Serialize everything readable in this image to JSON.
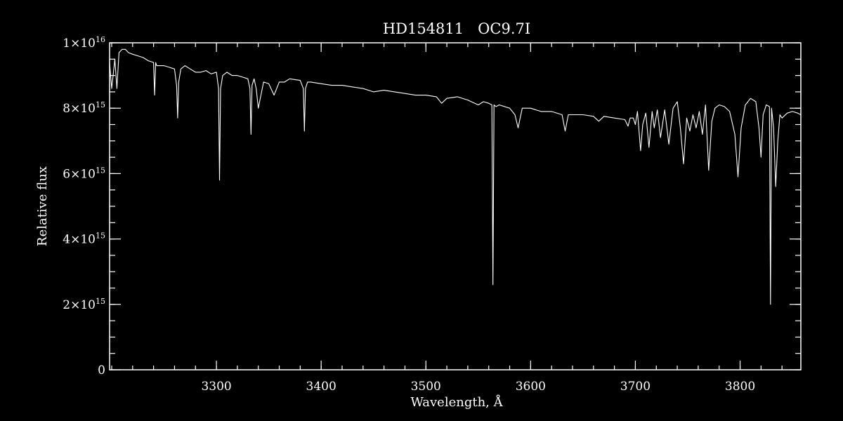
{
  "chart_data": {
    "type": "line",
    "title": "HD154811   OC9.7I",
    "xlabel": "Wavelength, Å",
    "ylabel": "Relative flux",
    "xlim": [
      3198,
      3858
    ],
    "ylim": [
      0,
      1e+16
    ],
    "x_ticks": [
      {
        "value": 3300,
        "label": "3300"
      },
      {
        "value": 3400,
        "label": "3400"
      },
      {
        "value": 3500,
        "label": "3500"
      },
      {
        "value": 3600,
        "label": "3600"
      },
      {
        "value": 3700,
        "label": "3700"
      },
      {
        "value": 3800,
        "label": "3800"
      }
    ],
    "x_minor_step": 20,
    "y_ticks": [
      {
        "value": 0,
        "mantissa": "0",
        "exponent": ""
      },
      {
        "value": 2000000000000000.0,
        "mantissa": "2×10",
        "exponent": "15"
      },
      {
        "value": 4000000000000000.0,
        "mantissa": "4×10",
        "exponent": "15"
      },
      {
        "value": 6000000000000000.0,
        "mantissa": "6×10",
        "exponent": "15"
      },
      {
        "value": 8000000000000000.0,
        "mantissa": "8×10",
        "exponent": "15"
      },
      {
        "value": 1e+16,
        "mantissa": "1×10",
        "exponent": "16"
      }
    ],
    "y_minor_step": 500000000000000.0,
    "grid": false,
    "colors": {
      "background": "#000000",
      "foreground": "#ffffff"
    },
    "series": [
      {
        "x": [
          3198,
          3200,
          3203,
          3205,
          3207,
          3210,
          3213,
          3216,
          3220,
          3225,
          3230,
          3235,
          3240,
          3241,
          3242,
          3243,
          3245,
          3250,
          3255,
          3260,
          3262,
          3263,
          3264,
          3266,
          3270,
          3275,
          3280,
          3285,
          3290,
          3295,
          3300,
          3302,
          3303,
          3304,
          3306,
          3310,
          3315,
          3320,
          3325,
          3330,
          3332,
          3333,
          3334,
          3336,
          3338,
          3340,
          3345,
          3350,
          3355,
          3360,
          3365,
          3370,
          3380,
          3383,
          3384,
          3385,
          3387,
          3390,
          3400,
          3410,
          3420,
          3430,
          3440,
          3450,
          3460,
          3470,
          3480,
          3490,
          3500,
          3510,
          3515,
          3520,
          3530,
          3540,
          3550,
          3555,
          3560,
          3563,
          3564,
          3565,
          3567,
          3570,
          3580,
          3585,
          3588,
          3592,
          3600,
          3610,
          3620,
          3630,
          3633,
          3636,
          3640,
          3650,
          3660,
          3665,
          3670,
          3680,
          3690,
          3693,
          3695,
          3698,
          3700,
          3702,
          3705,
          3707,
          3710,
          3713,
          3716,
          3718,
          3721,
          3724,
          3728,
          3732,
          3736,
          3740,
          3743,
          3746,
          3749,
          3752,
          3755,
          3758,
          3761,
          3764,
          3767,
          3770,
          3773,
          3776,
          3780,
          3785,
          3790,
          3795,
          3798,
          3801,
          3805,
          3810,
          3815,
          3818,
          3820,
          3822,
          3825,
          3828,
          3829,
          3830,
          3832,
          3834,
          3836,
          3838,
          3840,
          3845,
          3850,
          3855,
          3858
        ],
        "y": [
          9400000000000000.0,
          8600000000000000.0,
          9500000000000000.0,
          8600000000000000.0,
          9700000000000000.0,
          9800000000000000.0,
          9800000000000000.0,
          9700000000000000.0,
          9650000000000000.0,
          9600000000000000.0,
          9550000000000000.0,
          9450000000000000.0,
          9400000000000000.0,
          8400000000000000.0,
          9400000000000000.0,
          9300000000000000.0,
          9300000000000000.0,
          9300000000000000.0,
          9250000000000000.0,
          9200000000000000.0,
          8700000000000000.0,
          7700000000000000.0,
          8800000000000000.0,
          9200000000000000.0,
          9300000000000000.0,
          9200000000000000.0,
          9100000000000000.0,
          9100000000000000.0,
          9150000000000000.0,
          9050000000000000.0,
          9100000000000000.0,
          8600000000000000.0,
          5800000000000000.0,
          8600000000000000.0,
          9000000000000000.0,
          9100000000000000.0,
          9000000000000000.0,
          9000000000000000.0,
          8950000000000000.0,
          8900000000000000.0,
          8600000000000000.0,
          7200000000000000.0,
          8700000000000000.0,
          8900000000000000.0,
          8600000000000000.0,
          8000000000000000.0,
          8800000000000000.0,
          8750000000000000.0,
          8400000000000000.0,
          8800000000000000.0,
          8800000000000000.0,
          8900000000000000.0,
          8850000000000000.0,
          8600000000000000.0,
          7300000000000000.0,
          8600000000000000.0,
          8800000000000000.0,
          8800000000000000.0,
          8750000000000000.0,
          8700000000000000.0,
          8700000000000000.0,
          8650000000000000.0,
          8600000000000000.0,
          8500000000000000.0,
          8550000000000000.0,
          8500000000000000.0,
          8450000000000000.0,
          8400000000000000.0,
          8400000000000000.0,
          8350000000000000.0,
          8150000000000000.0,
          8300000000000000.0,
          8350000000000000.0,
          8250000000000000.0,
          8100000000000000.0,
          8200000000000000.0,
          8150000000000000.0,
          8100000000000000.0,
          2600000000000000.0,
          8100000000000000.0,
          8050000000000000.0,
          8100000000000000.0,
          8000000000000000.0,
          7800000000000000.0,
          7400000000000000.0,
          8000000000000000.0,
          8000000000000000.0,
          7900000000000000.0,
          7900000000000000.0,
          7800000000000000.0,
          7300000000000000.0,
          7800000000000000.0,
          7800000000000000.0,
          7800000000000000.0,
          7750000000000000.0,
          7600000000000000.0,
          7750000000000000.0,
          7700000000000000.0,
          7650000000000000.0,
          7450000000000000.0,
          7700000000000000.0,
          7700000000000000.0,
          7500000000000000.0,
          7900000000000000.0,
          6700000000000000.0,
          7500000000000000.0,
          7850000000000000.0,
          6800000000000000.0,
          7900000000000000.0,
          7400000000000000.0,
          7950000000000000.0,
          7100000000000000.0,
          7950000000000000.0,
          6900000000000000.0,
          8000000000000000.0,
          8200000000000000.0,
          7400000000000000.0,
          6300000000000000.0,
          7700000000000000.0,
          7300000000000000.0,
          7800000000000000.0,
          7400000000000000.0,
          7900000000000000.0,
          7200000000000000.0,
          8100000000000000.0,
          6100000000000000.0,
          7600000000000000.0,
          8000000000000000.0,
          8100000000000000.0,
          8050000000000000.0,
          7900000000000000.0,
          7200000000000000.0,
          5900000000000000.0,
          7400000000000000.0,
          8100000000000000.0,
          8300000000000000.0,
          8200000000000000.0,
          7400000000000000.0,
          6500000000000000.0,
          7800000000000000.0,
          8100000000000000.0,
          8050000000000000.0,
          2000000000000000.0,
          8000000000000000.0,
          7400000000000000.0,
          5600000000000000.0,
          7000000000000000.0,
          7800000000000000.0,
          7700000000000000.0,
          7850000000000000.0,
          7900000000000000.0,
          7850000000000000.0,
          7800000000000000.0
        ]
      }
    ]
  }
}
